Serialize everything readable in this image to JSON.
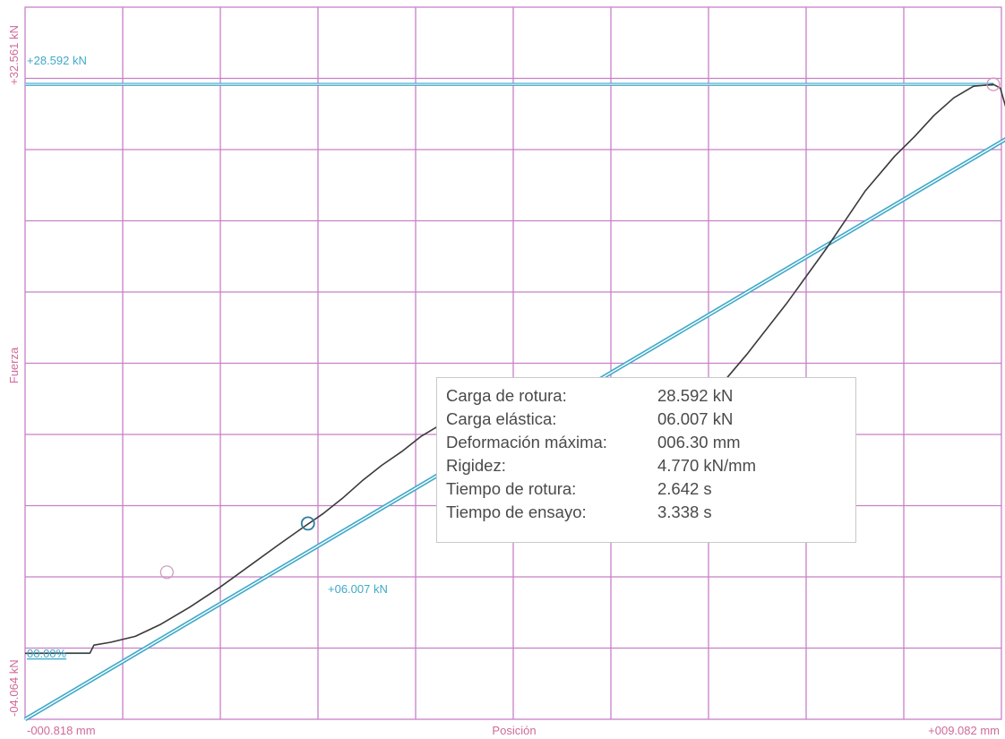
{
  "colors": {
    "grid": "#c880c8",
    "fit_line": "#3fa9c9",
    "curve": "#3a3a3a",
    "axis_text": "#d06a9a",
    "marker_text": "#3fa9c9"
  },
  "chart_data": {
    "type": "line",
    "title": "",
    "xlabel": "Posición",
    "ylabel": "Fuerza",
    "x_unit": "mm",
    "y_unit": "kN",
    "xlim": [
      -0.818,
      9.082
    ],
    "ylim": [
      -4.064,
      32.561
    ],
    "x_min_label": "-000.818 mm",
    "x_max_label": "+009.082 mm",
    "y_min_label": "-04.064 kN",
    "y_max_label": "+32.561 kN",
    "grid": true,
    "series": [
      {
        "values": [
          [
            -0.818,
            -0.67
          ],
          [
            -0.16,
            -0.66
          ],
          [
            -0.12,
            -0.25
          ],
          [
            0.05,
            -0.1
          ],
          [
            0.3,
            0.2
          ],
          [
            0.55,
            0.8
          ],
          [
            0.85,
            1.7
          ],
          [
            1.15,
            2.7
          ],
          [
            1.45,
            3.8
          ],
          [
            1.75,
            4.9
          ],
          [
            2.0,
            5.8
          ],
          [
            2.2,
            6.5
          ],
          [
            2.4,
            7.3
          ],
          [
            2.6,
            8.2
          ],
          [
            2.8,
            9.0
          ],
          [
            3.0,
            9.7
          ],
          [
            3.2,
            10.5
          ],
          [
            3.4,
            11.1
          ],
          [
            3.6,
            11.5
          ],
          [
            3.8,
            11.7
          ],
          [
            4.0,
            11.8
          ]
        ]
      },
      {
        "values": [
          [
            6.3,
            13.5
          ],
          [
            6.5,
            14.7
          ],
          [
            6.7,
            16.0
          ],
          [
            6.9,
            17.3
          ],
          [
            7.1,
            18.7
          ],
          [
            7.3,
            20.1
          ],
          [
            7.5,
            21.6
          ],
          [
            7.7,
            23.1
          ],
          [
            7.9,
            24.3
          ],
          [
            8.0,
            24.9
          ],
          [
            8.2,
            25.9
          ],
          [
            8.4,
            27.0
          ],
          [
            8.6,
            27.9
          ],
          [
            8.8,
            28.5
          ],
          [
            9.0,
            28.592
          ],
          [
            9.07,
            28.4
          ],
          [
            9.15,
            27.0
          ],
          [
            9.25,
            25.7
          ]
        ]
      }
    ],
    "fit_line": {
      "from": [
        -0.818,
        -4.064
      ],
      "to": [
        11.2,
        32.0
      ]
    },
    "break_load_line": {
      "y": 28.592,
      "x_end": 9.0
    },
    "zero_line": {
      "y": -0.67
    },
    "markers": [
      {
        "x": 2.05,
        "y": 6.007,
        "label": "+06.007 kN"
      },
      {
        "x": 0.62,
        "y": 3.5
      },
      {
        "x": 9.0,
        "y": 28.592
      }
    ],
    "annotations": {
      "break_load_label": "+28.592 kN",
      "zero_percent_label": "00.00%"
    }
  },
  "results": [
    {
      "label": "Carga de rotura:",
      "value": "28.592 kN"
    },
    {
      "label": "Carga elástica:",
      "value": "06.007 kN"
    },
    {
      "label": "Deformación máxima:",
      "value": "006.30 mm"
    },
    {
      "label": "Rigidez:",
      "value": "4.770 kN/mm"
    },
    {
      "label": "Tiempo de rotura:",
      "value": "2.642 s"
    },
    {
      "label": "Tiempo de ensayo:",
      "value": "3.338 s"
    }
  ]
}
